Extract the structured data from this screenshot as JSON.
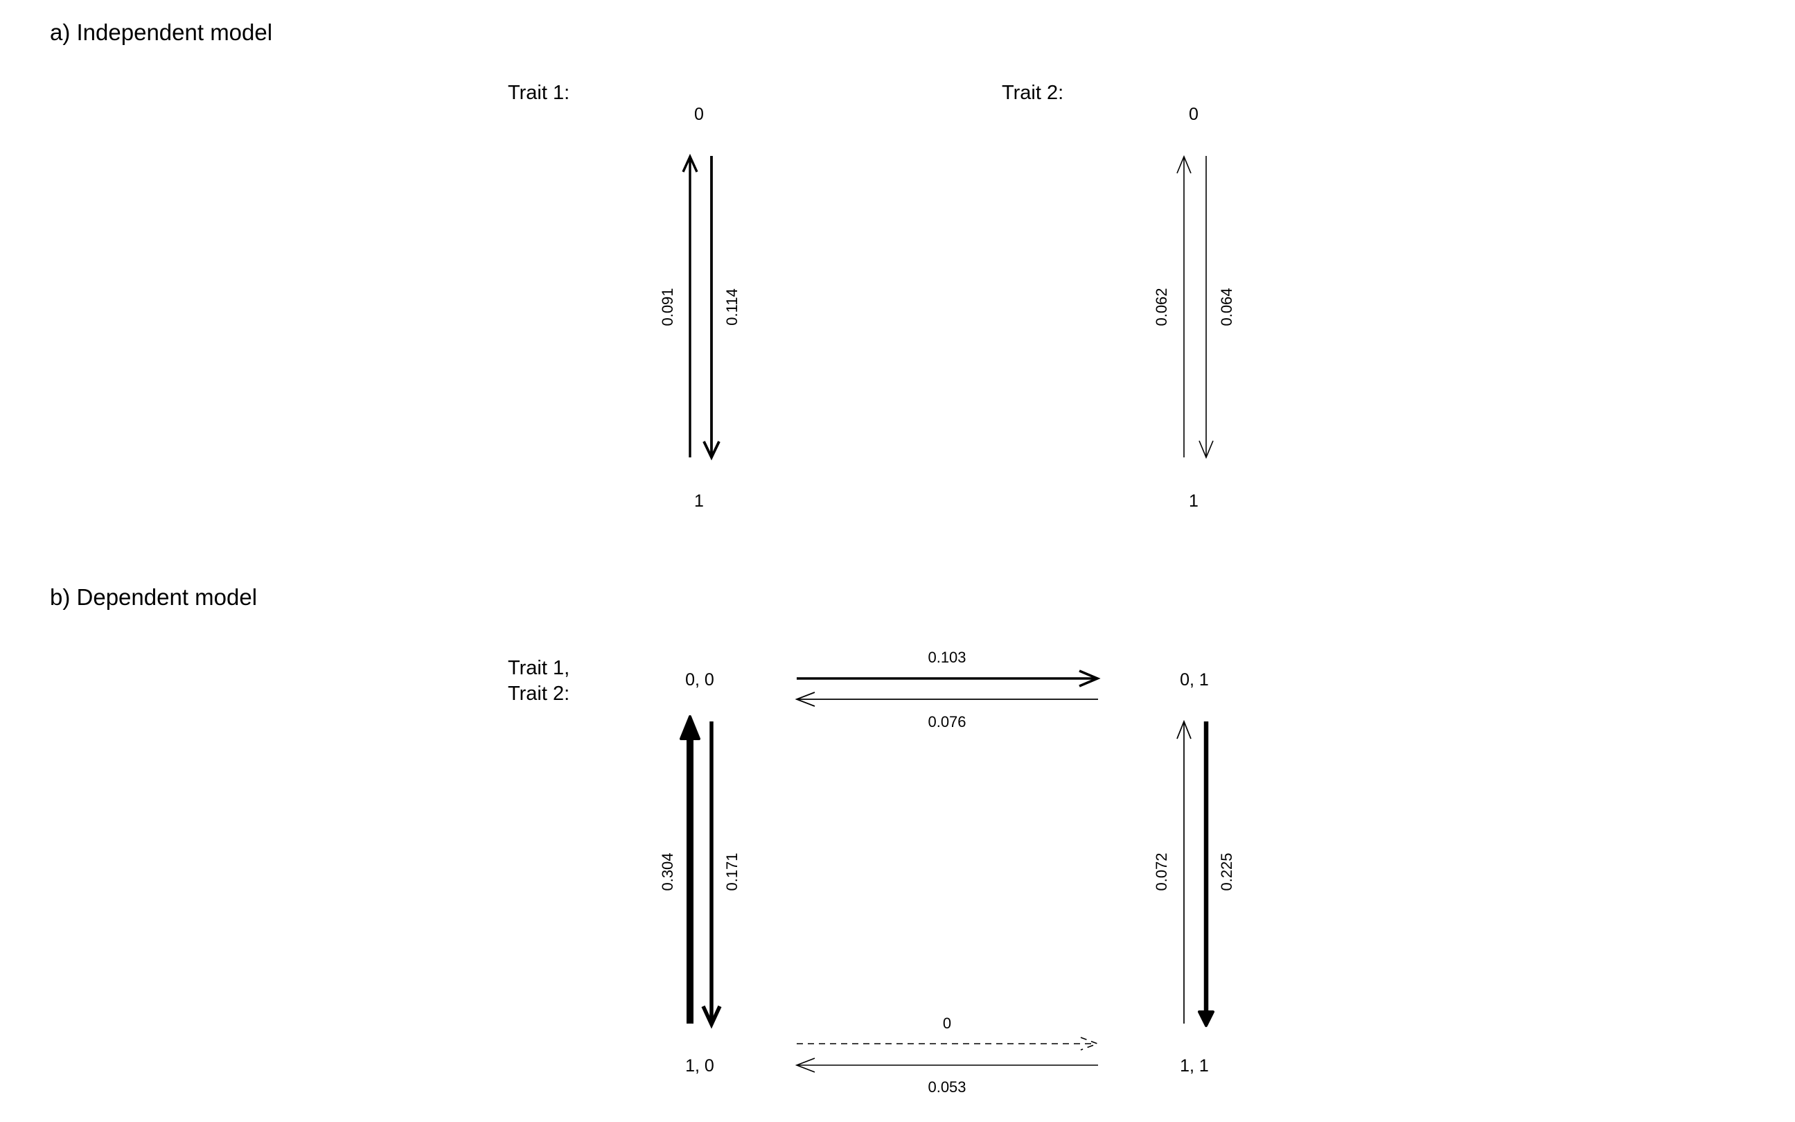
{
  "panels": {
    "a": {
      "title": "a) Independent model",
      "trait1": {
        "label": "Trait 1:",
        "state_top": "0",
        "state_bottom": "1",
        "rate_up": "0.091",
        "rate_down": "0.114"
      },
      "trait2": {
        "label": "Trait 2:",
        "state_top": "0",
        "state_bottom": "1",
        "rate_up": "0.062",
        "rate_down": "0.064"
      }
    },
    "b": {
      "title": "b) Dependent model",
      "label_line1": "Trait 1,",
      "label_line2": "Trait 2:",
      "states": {
        "s00": "0, 0",
        "s01": "0, 1",
        "s10": "1, 0",
        "s11": "1, 1"
      },
      "rates": {
        "r00_01": "0.103",
        "r01_00": "0.076",
        "r10_00": "0.304",
        "r00_10": "0.171",
        "r11_01": "0.072",
        "r01_11": "0.225",
        "r10_11": "0",
        "r11_10": "0.053"
      }
    }
  },
  "chart_data": {
    "type": "diagram",
    "panels": [
      {
        "title": "a) Independent model",
        "transitions": [
          {
            "trait": "Trait 1",
            "from": "1",
            "to": "0",
            "rate": 0.091
          },
          {
            "trait": "Trait 1",
            "from": "0",
            "to": "1",
            "rate": 0.114
          },
          {
            "trait": "Trait 2",
            "from": "1",
            "to": "0",
            "rate": 0.062
          },
          {
            "trait": "Trait 2",
            "from": "0",
            "to": "1",
            "rate": 0.064
          }
        ]
      },
      {
        "title": "b) Dependent model",
        "transitions": [
          {
            "from": "0, 0",
            "to": "0, 1",
            "rate": 0.103
          },
          {
            "from": "0, 1",
            "to": "0, 0",
            "rate": 0.076
          },
          {
            "from": "1, 0",
            "to": "0, 0",
            "rate": 0.304
          },
          {
            "from": "0, 0",
            "to": "1, 0",
            "rate": 0.171
          },
          {
            "from": "1, 1",
            "to": "0, 1",
            "rate": 0.072
          },
          {
            "from": "0, 1",
            "to": "1, 1",
            "rate": 0.225
          },
          {
            "from": "1, 0",
            "to": "1, 1",
            "rate": 0,
            "dashed": true
          },
          {
            "from": "1, 1",
            "to": "1, 0",
            "rate": 0.053
          }
        ]
      }
    ]
  }
}
